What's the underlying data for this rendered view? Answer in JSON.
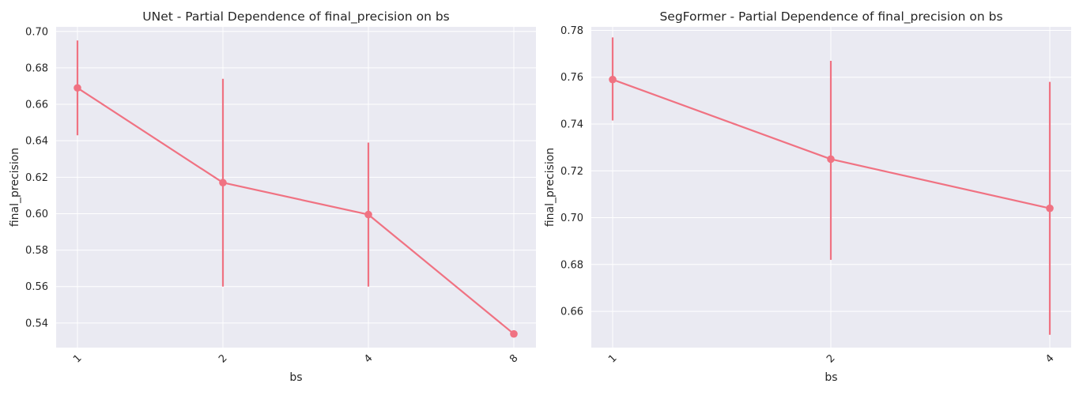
{
  "chart_data": [
    {
      "type": "line",
      "title": "UNet - Partial Dependence of final_precision on bs",
      "xlabel": "bs",
      "ylabel": "final_precision",
      "categories": [
        "1",
        "2",
        "4",
        "8"
      ],
      "values": [
        0.669,
        0.617,
        0.5995,
        0.534
      ],
      "error_low": [
        0.643,
        0.56,
        0.56,
        0.534
      ],
      "error_high": [
        0.695,
        0.674,
        0.639,
        0.534
      ],
      "yticks": [
        "0.54",
        "0.56",
        "0.58",
        "0.60",
        "0.62",
        "0.64",
        "0.66",
        "0.68",
        "0.70"
      ],
      "ytick_values": [
        0.54,
        0.56,
        0.58,
        0.6,
        0.62,
        0.64,
        0.66,
        0.68,
        0.7
      ],
      "ylim": [
        0.5265,
        0.7025
      ],
      "xtick_rotation": 45,
      "grid": true,
      "color": "#f07282"
    },
    {
      "type": "line",
      "title": "SegFormer - Partial Dependence of final_precision on bs",
      "xlabel": "bs",
      "ylabel": "final_precision",
      "categories": [
        "1",
        "2",
        "4"
      ],
      "values": [
        0.759,
        0.725,
        0.704
      ],
      "error_low": [
        0.7415,
        0.682,
        0.65
      ],
      "error_high": [
        0.777,
        0.767,
        0.758
      ],
      "yticks": [
        "0.66",
        "0.68",
        "0.70",
        "0.72",
        "0.74",
        "0.76",
        "0.78"
      ],
      "ytick_values": [
        0.66,
        0.68,
        0.7,
        0.72,
        0.74,
        0.76,
        0.78
      ],
      "ylim": [
        0.6445,
        0.7815
      ],
      "xtick_rotation": 45,
      "grid": true,
      "color": "#f07282"
    }
  ]
}
